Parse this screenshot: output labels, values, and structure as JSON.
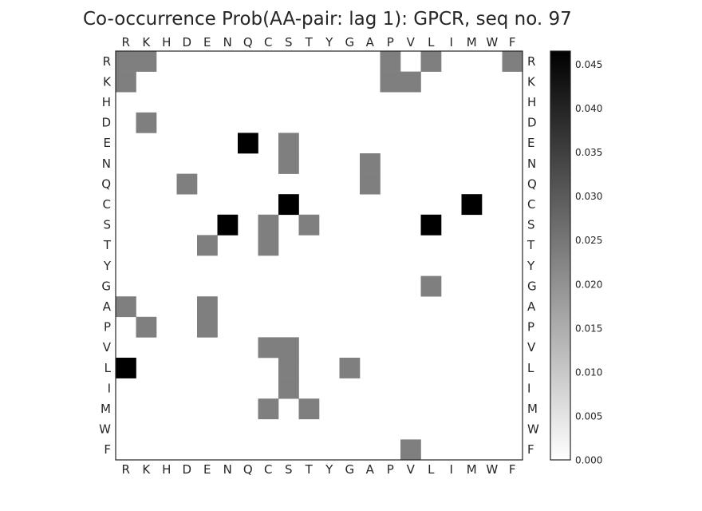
{
  "chart_data": {
    "type": "heatmap",
    "title": "Co-occurrence Prob(AA-pair: lag 1):  GPCR, seq no. 97",
    "x_labels": [
      "R",
      "K",
      "H",
      "D",
      "E",
      "N",
      "Q",
      "C",
      "S",
      "T",
      "Y",
      "G",
      "A",
      "P",
      "V",
      "L",
      "I",
      "M",
      "W",
      "F"
    ],
    "y_labels": [
      "R",
      "K",
      "H",
      "D",
      "E",
      "N",
      "Q",
      "C",
      "S",
      "T",
      "Y",
      "G",
      "A",
      "P",
      "V",
      "L",
      "I",
      "M",
      "W",
      "F"
    ],
    "colorbar": {
      "min": 0.0,
      "max": 0.0465,
      "ticks": [
        0.0,
        0.005,
        0.01,
        0.015,
        0.02,
        0.025,
        0.03,
        0.035,
        0.04,
        0.045
      ],
      "tick_labels": [
        "0.000",
        "0.005",
        "0.010",
        "0.015",
        "0.020",
        "0.025",
        "0.030",
        "0.035",
        "0.040",
        "0.045"
      ]
    },
    "grid": false,
    "cells": [
      {
        "row": "R",
        "col": "R",
        "value": 0.0233
      },
      {
        "row": "R",
        "col": "K",
        "value": 0.0233
      },
      {
        "row": "R",
        "col": "P",
        "value": 0.0233
      },
      {
        "row": "R",
        "col": "L",
        "value": 0.0233
      },
      {
        "row": "R",
        "col": "F",
        "value": 0.0233
      },
      {
        "row": "K",
        "col": "R",
        "value": 0.0233
      },
      {
        "row": "K",
        "col": "P",
        "value": 0.0233
      },
      {
        "row": "K",
        "col": "V",
        "value": 0.0233
      },
      {
        "row": "D",
        "col": "K",
        "value": 0.0233
      },
      {
        "row": "E",
        "col": "Q",
        "value": 0.0465
      },
      {
        "row": "E",
        "col": "S",
        "value": 0.0233
      },
      {
        "row": "N",
        "col": "S",
        "value": 0.0233
      },
      {
        "row": "N",
        "col": "A",
        "value": 0.0233
      },
      {
        "row": "Q",
        "col": "D",
        "value": 0.0233
      },
      {
        "row": "Q",
        "col": "A",
        "value": 0.0233
      },
      {
        "row": "C",
        "col": "S",
        "value": 0.0465
      },
      {
        "row": "C",
        "col": "M",
        "value": 0.0465
      },
      {
        "row": "S",
        "col": "N",
        "value": 0.0465
      },
      {
        "row": "S",
        "col": "C",
        "value": 0.0233
      },
      {
        "row": "S",
        "col": "T",
        "value": 0.0233
      },
      {
        "row": "S",
        "col": "L",
        "value": 0.0465
      },
      {
        "row": "T",
        "col": "E",
        "value": 0.0233
      },
      {
        "row": "T",
        "col": "C",
        "value": 0.0233
      },
      {
        "row": "G",
        "col": "L",
        "value": 0.0233
      },
      {
        "row": "A",
        "col": "R",
        "value": 0.0233
      },
      {
        "row": "A",
        "col": "E",
        "value": 0.0233
      },
      {
        "row": "P",
        "col": "K",
        "value": 0.0233
      },
      {
        "row": "P",
        "col": "E",
        "value": 0.0233
      },
      {
        "row": "V",
        "col": "C",
        "value": 0.0233
      },
      {
        "row": "V",
        "col": "S",
        "value": 0.0233
      },
      {
        "row": "L",
        "col": "R",
        "value": 0.0465
      },
      {
        "row": "L",
        "col": "S",
        "value": 0.0233
      },
      {
        "row": "L",
        "col": "G",
        "value": 0.0233
      },
      {
        "row": "I",
        "col": "S",
        "value": 0.0233
      },
      {
        "row": "M",
        "col": "C",
        "value": 0.0233
      },
      {
        "row": "M",
        "col": "T",
        "value": 0.0233
      },
      {
        "row": "F",
        "col": "V",
        "value": 0.0233
      }
    ]
  }
}
